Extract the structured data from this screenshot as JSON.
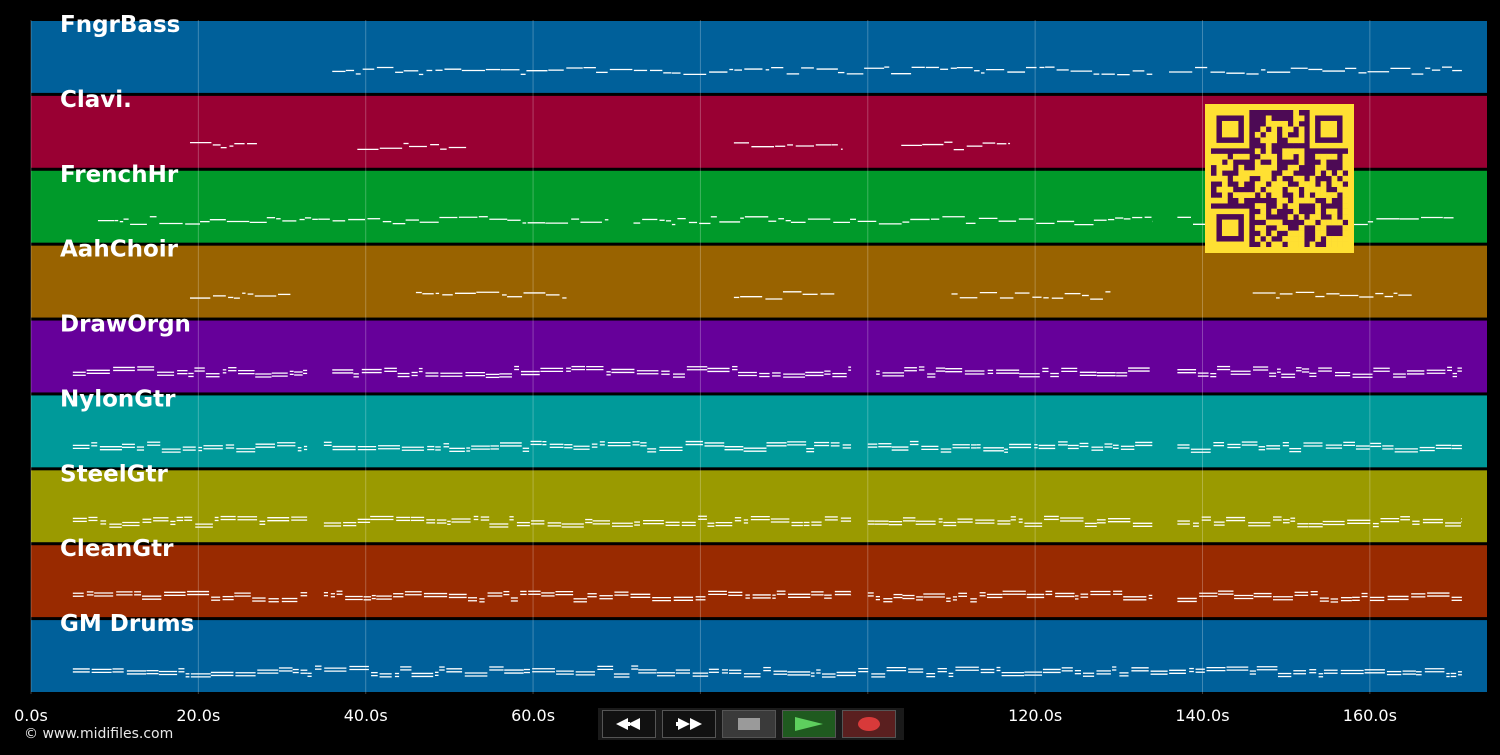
{
  "chart_data": {
    "type": "piano-roll",
    "x_unit": "seconds",
    "xlim": [
      0,
      174
    ],
    "x_ticks": [
      0,
      20,
      40,
      60,
      80,
      100,
      120,
      140,
      160
    ],
    "x_tick_labels": [
      "0.0s",
      "20.0s",
      "40.0s",
      "60.0s",
      "80.0s",
      "100.0s",
      "120.0s",
      "140.0s",
      "160.0s"
    ],
    "grid": true,
    "tracks": [
      {
        "name": "FngrBass",
        "color": "#00609a",
        "segments": [
          [
            36,
            134
          ],
          [
            136,
            171
          ]
        ]
      },
      {
        "name": "Clavi.",
        "color": "#990033",
        "segments": [
          [
            19,
            27
          ],
          [
            39,
            52
          ],
          [
            84,
            97
          ],
          [
            104,
            117
          ]
        ]
      },
      {
        "name": "FrenchHr",
        "color": "#009a2a",
        "segments": [
          [
            8,
            69
          ],
          [
            72,
            134
          ],
          [
            137,
            170
          ]
        ]
      },
      {
        "name": "AahChoir",
        "color": "#996300",
        "segments": [
          [
            19,
            31
          ],
          [
            46,
            64
          ],
          [
            84,
            96
          ],
          [
            110,
            129
          ],
          [
            146,
            165
          ]
        ]
      },
      {
        "name": "DrawOrgn",
        "color": "#66009a",
        "segments": [
          [
            5,
            33
          ],
          [
            36,
            98
          ],
          [
            101,
            134
          ],
          [
            137,
            171
          ]
        ]
      },
      {
        "name": "NylonGtr",
        "color": "#009a9a",
        "segments": [
          [
            5,
            33
          ],
          [
            35,
            98
          ],
          [
            100,
            134
          ],
          [
            137,
            171
          ]
        ]
      },
      {
        "name": "SteelGtr",
        "color": "#9a9a00",
        "segments": [
          [
            5,
            33
          ],
          [
            35,
            98
          ],
          [
            100,
            134
          ],
          [
            137,
            171
          ]
        ]
      },
      {
        "name": "CleanGtr",
        "color": "#992a00",
        "segments": [
          [
            5,
            33
          ],
          [
            35,
            98
          ],
          [
            100,
            134
          ],
          [
            137,
            171
          ]
        ]
      },
      {
        "name": "GM Drums",
        "color": "#00609a",
        "segments": [
          [
            5,
            171
          ]
        ]
      }
    ]
  },
  "overlay": {
    "qr_icon": "qr-code-icon",
    "qr_fg": "#ffe033",
    "qr_bg": "#4d0a55"
  },
  "footer": {
    "copyright": "© www.midifiles.com"
  },
  "transport": {
    "rewind_icon": "rewind-icon",
    "forward_icon": "fast-forward-icon",
    "stop_icon": "stop-icon",
    "play_icon": "play-icon",
    "record_icon": "record-icon"
  }
}
